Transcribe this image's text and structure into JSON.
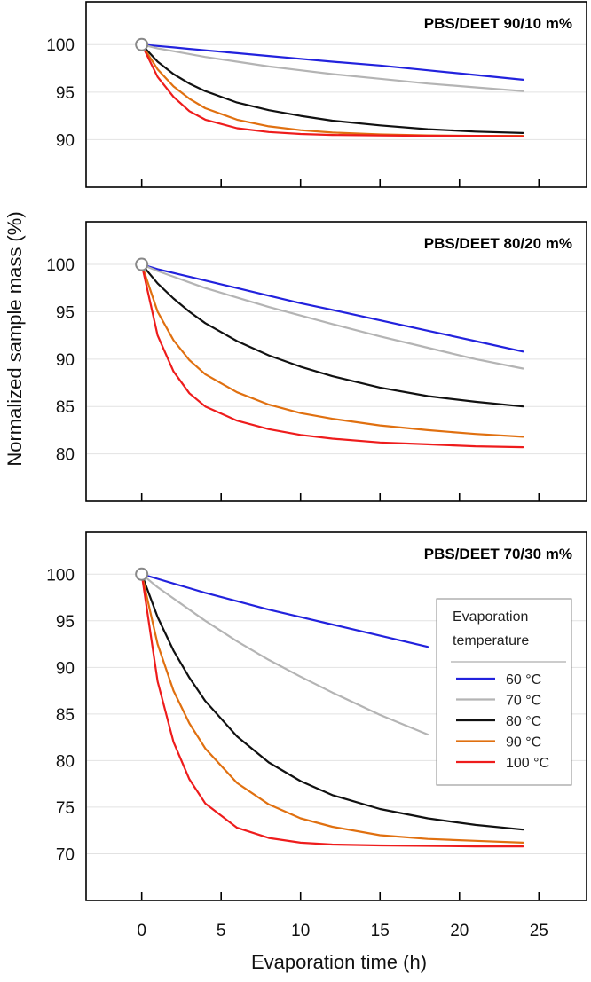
{
  "chart_data": {
    "type": "line",
    "ylabel": "Normalized sample mass (%)",
    "xlabel": "Evaporation time  (h)",
    "xlim": [
      -3.5,
      28
    ],
    "xticks": [
      0,
      5,
      10,
      15,
      20,
      25
    ],
    "legend": {
      "title_line1": "Evaporation",
      "title_line2": "temperature",
      "position": "bottom-right of bottom panel"
    },
    "series_defs": [
      {
        "name": "60 °C",
        "color": "#2222dd"
      },
      {
        "name": "70 °C",
        "color": "#b4b4b4"
      },
      {
        "name": "80 °C",
        "color": "#111111"
      },
      {
        "name": "90 °C",
        "color": "#e07010"
      },
      {
        "name": "100 °C",
        "color": "#ee1c1c"
      }
    ],
    "panels": [
      {
        "title": "PBS/DEET 90/10 m%",
        "ylim": [
          85,
          104.5
        ],
        "yticks": [
          90,
          95,
          100
        ],
        "x": [
          0,
          1,
          2,
          3,
          4,
          6,
          8,
          10,
          12,
          15,
          18,
          21,
          24
        ],
        "series": [
          {
            "name": "60 °C",
            "values": [
              100,
              99.85,
              99.7,
              99.55,
              99.4,
              99.1,
              98.8,
              98.5,
              98.2,
              97.8,
              97.3,
              96.8,
              96.3
            ]
          },
          {
            "name": "70 °C",
            "values": [
              100,
              99.6,
              99.3,
              99.0,
              98.7,
              98.2,
              97.7,
              97.3,
              96.9,
              96.4,
              95.9,
              95.5,
              95.1
            ]
          },
          {
            "name": "80 °C",
            "values": [
              100,
              98.2,
              96.9,
              95.9,
              95.1,
              93.9,
              93.1,
              92.5,
              92.0,
              91.5,
              91.1,
              90.85,
              90.7
            ]
          },
          {
            "name": "90 °C",
            "values": [
              100,
              97.4,
              95.6,
              94.3,
              93.3,
              92.1,
              91.4,
              91.0,
              90.75,
              90.55,
              90.45,
              90.4,
              90.4
            ]
          },
          {
            "name": "100 °C",
            "values": [
              100,
              96.6,
              94.5,
              93.0,
              92.1,
              91.2,
              90.8,
              90.6,
              90.5,
              90.45,
              90.4,
              90.4,
              90.35
            ]
          }
        ]
      },
      {
        "title": "PBS/DEET 80/20 m%",
        "ylim": [
          75,
          104.5
        ],
        "yticks": [
          80,
          85,
          90,
          95,
          100
        ],
        "x": [
          0,
          1,
          2,
          3,
          4,
          6,
          8,
          10,
          12,
          15,
          18,
          21,
          24
        ],
        "series": [
          {
            "name": "60 °C",
            "values": [
              100,
              99.5,
              99.1,
              98.7,
              98.3,
              97.5,
              96.7,
              95.9,
              95.2,
              94.1,
              93.0,
              91.9,
              90.8
            ]
          },
          {
            "name": "70 °C",
            "values": [
              100,
              99.3,
              98.7,
              98.1,
              97.5,
              96.5,
              95.5,
              94.6,
              93.7,
              92.4,
              91.2,
              90.0,
              89.0
            ]
          },
          {
            "name": "80 °C",
            "values": [
              100,
              98.0,
              96.4,
              95.0,
              93.8,
              91.9,
              90.4,
              89.2,
              88.2,
              87.0,
              86.1,
              85.5,
              85.0
            ]
          },
          {
            "name": "90 °C",
            "values": [
              100,
              95.0,
              92.0,
              89.9,
              88.4,
              86.5,
              85.2,
              84.3,
              83.7,
              83.0,
              82.5,
              82.1,
              81.8
            ]
          },
          {
            "name": "100 °C",
            "values": [
              100,
              92.5,
              88.7,
              86.4,
              85.0,
              83.5,
              82.6,
              82.0,
              81.6,
              81.2,
              81.0,
              80.8,
              80.7
            ]
          }
        ]
      },
      {
        "title": "PBS/DEET 70/30 m%",
        "ylim": [
          65,
          104.5
        ],
        "yticks": [
          70,
          75,
          80,
          85,
          90,
          95,
          100
        ],
        "x": [
          0,
          1,
          2,
          3,
          4,
          6,
          8,
          10,
          12,
          15,
          18,
          21,
          24
        ],
        "series": [
          {
            "name": "60 °C",
            "values": [
              100,
              99.5,
              99.0,
              98.5,
              98.0,
              97.1,
              96.2,
              95.4,
              94.6,
              93.4,
              92.2,
              null,
              null
            ]
          },
          {
            "name": "70 °C",
            "values": [
              100,
              98.6,
              97.4,
              96.2,
              95.0,
              92.8,
              90.8,
              89.0,
              87.3,
              84.9,
              82.8,
              null,
              null
            ]
          },
          {
            "name": "80 °C",
            "values": [
              100,
              95.4,
              91.8,
              88.9,
              86.4,
              82.6,
              79.8,
              77.8,
              76.3,
              74.8,
              73.8,
              73.1,
              72.6
            ]
          },
          {
            "name": "90 °C",
            "values": [
              100,
              92.5,
              87.5,
              84.0,
              81.3,
              77.6,
              75.3,
              73.8,
              72.9,
              72.0,
              71.6,
              71.4,
              71.2
            ]
          },
          {
            "name": "100 °C",
            "values": [
              100,
              88.5,
              82.0,
              78.0,
              75.4,
              72.8,
              71.7,
              71.2,
              71.0,
              70.9,
              70.85,
              70.8,
              70.8
            ]
          }
        ]
      }
    ]
  }
}
